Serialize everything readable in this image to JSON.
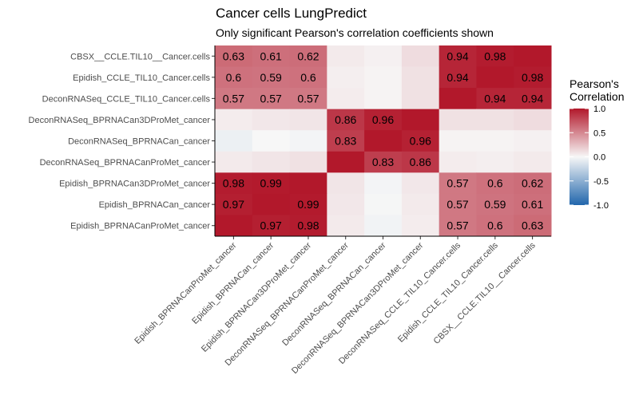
{
  "chart_data": {
    "type": "heatmap",
    "title": "Cancer cells LungPredict",
    "subtitle": "Only significant Pearson's correlation coefficients shown",
    "legend": {
      "title": "Pearson's\nCorrelation",
      "ticks": [
        "1.0",
        "0.5",
        "0.0",
        "-0.5",
        "-1.0"
      ],
      "range": [
        -1,
        1
      ],
      "colors": {
        "low": "#2166ac",
        "mid": "#f7f7f7",
        "high": "#b2182b"
      }
    },
    "rows": [
      "CBSX__CCLE.TIL10__Cancer.cells",
      "Epidish_CCLE_TIL10_Cancer.cells",
      "DeconRNASeq_CCLE_TIL10_Cancer.cells",
      "DeconRNASeq_BPRNACan3DProMet_cancer",
      "DeconRNASeq_BPRNACan_cancer",
      "DeconRNASeq_BPRNACanProMet_cancer",
      "Epidish_BPRNACan3DProMet_cancer",
      "Epidish_BPRNACan_cancer",
      "Epidish_BPRNACanProMet_cancer"
    ],
    "columns": [
      "Epidish_BPRNACanProMet_cancer",
      "Epidish_BPRNACan_cancer",
      "Epidish_BPRNACan3DProMet_cancer",
      "DeconRNASeq_BPRNACanProMet_cancer",
      "DeconRNASeq_BPRNACan_cancer",
      "DeconRNASeq_BPRNACan3DProMet_cancer",
      "DeconRNASeq_CCLE_TIL10_Cancer.cells",
      "Epidish_CCLE_TIL10_Cancer.cells",
      "CBSX__CCLE.TIL10__Cancer.cells"
    ],
    "values": [
      [
        0.63,
        0.61,
        0.62,
        0.06,
        0.03,
        0.12,
        0.94,
        0.98,
        1.0
      ],
      [
        0.6,
        0.59,
        0.6,
        0.04,
        0.02,
        0.1,
        0.94,
        1.0,
        0.98
      ],
      [
        0.57,
        0.57,
        0.57,
        0.05,
        0.02,
        0.1,
        1.0,
        0.94,
        0.94
      ],
      [
        0.05,
        0.07,
        0.08,
        0.86,
        0.96,
        1.0,
        0.1,
        0.1,
        0.12
      ],
      [
        -0.05,
        0.0,
        -0.02,
        0.83,
        1.0,
        0.96,
        0.02,
        0.02,
        0.03
      ],
      [
        0.06,
        0.08,
        0.1,
        1.0,
        0.83,
        0.86,
        0.05,
        0.04,
        0.06
      ],
      [
        0.98,
        0.99,
        1.0,
        0.08,
        -0.02,
        0.07,
        0.57,
        0.6,
        0.62
      ],
      [
        0.97,
        1.0,
        0.99,
        0.07,
        -0.01,
        0.06,
        0.57,
        0.59,
        0.61
      ],
      [
        1.0,
        0.97,
        0.98,
        0.06,
        -0.03,
        0.05,
        0.57,
        0.6,
        0.63
      ]
    ],
    "labels": [
      [
        "0.63",
        "0.61",
        "0.62",
        "",
        "",
        "",
        "0.94",
        "0.98",
        ""
      ],
      [
        "0.6",
        "0.59",
        "0.6",
        "",
        "",
        "",
        "0.94",
        "",
        "0.98"
      ],
      [
        "0.57",
        "0.57",
        "0.57",
        "",
        "",
        "",
        "",
        "0.94",
        "0.94"
      ],
      [
        "",
        "",
        "",
        "0.86",
        "0.96",
        "",
        "",
        "",
        ""
      ],
      [
        "",
        "",
        "",
        "0.83",
        "",
        "0.96",
        "",
        "",
        ""
      ],
      [
        "",
        "",
        "",
        "",
        "0.83",
        "0.86",
        "",
        "",
        ""
      ],
      [
        "0.98",
        "0.99",
        "",
        "",
        "",
        "",
        "0.57",
        "0.6",
        "0.62"
      ],
      [
        "0.97",
        "",
        "0.99",
        "",
        "",
        "",
        "0.57",
        "0.59",
        "0.61"
      ],
      [
        "",
        "0.97",
        "0.98",
        "",
        "",
        "",
        "0.57",
        "0.6",
        "0.63"
      ]
    ]
  }
}
